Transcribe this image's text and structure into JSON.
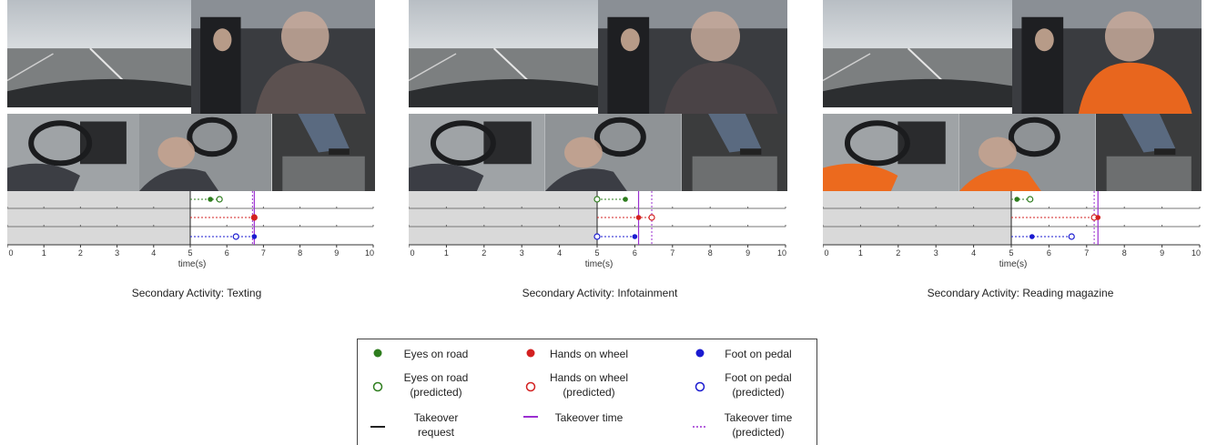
{
  "figure": {
    "panels": [
      {
        "caption": "Secondary Activity: Texting"
      },
      {
        "caption": "Secondary Activity: Infotainment"
      },
      {
        "caption": "Secondary Activity: Reading magazine"
      }
    ],
    "colors": {
      "eyes": "#2e7d1e",
      "hands": "#d32020",
      "foot": "#1a1ad0",
      "takeover": "#9b2fd1",
      "request": "#222222",
      "shade": "#d9d9d9"
    },
    "legend": {
      "items": [
        {
          "label": "Eyes on road",
          "symbol": "filled-circle",
          "color": "#2e7d1e"
        },
        {
          "label": "Hands on wheel",
          "symbol": "filled-circle",
          "color": "#d32020"
        },
        {
          "label": "Foot on pedal",
          "symbol": "filled-circle",
          "color": "#1a1ad0"
        },
        {
          "label": "Eyes on road\n(predicted)",
          "symbol": "open-circle",
          "color": "#2e7d1e"
        },
        {
          "label": "Hands on wheel\n(predicted)",
          "symbol": "open-circle",
          "color": "#d32020"
        },
        {
          "label": "Foot on pedal\n(predicted)",
          "symbol": "open-circle",
          "color": "#1a1ad0"
        },
        {
          "label": "Takeover\nrequest",
          "symbol": "solid-line",
          "color": "#222222"
        },
        {
          "label": "Takeover time",
          "symbol": "solid-line",
          "color": "#9b2fd1"
        },
        {
          "label": "Takeover time\n(predicted)",
          "symbol": "dashed-line",
          "color": "#9b2fd1"
        }
      ]
    }
  },
  "chart_data": [
    {
      "type": "scatter",
      "title": "Secondary Activity: Texting",
      "xlabel": "time(s)",
      "xlim": [
        0,
        10
      ],
      "xticks": [
        0,
        1,
        2,
        3,
        4,
        5,
        6,
        7,
        8,
        9,
        10
      ],
      "takeover_request": 5,
      "takeover_time": 6.75,
      "takeover_time_predicted": 6.7,
      "series": [
        {
          "name": "Eyes on road",
          "actual": 5.55,
          "predicted": 5.8
        },
        {
          "name": "Hands on wheel",
          "actual": 6.75,
          "predicted": 6.75
        },
        {
          "name": "Foot on pedal",
          "actual": 6.75,
          "predicted": 6.25
        }
      ]
    },
    {
      "type": "scatter",
      "title": "Secondary Activity: Infotainment",
      "xlabel": "time(s)",
      "xlim": [
        0,
        10
      ],
      "xticks": [
        0,
        1,
        2,
        3,
        4,
        5,
        6,
        7,
        8,
        9,
        10
      ],
      "takeover_request": 5,
      "takeover_time": 6.1,
      "takeover_time_predicted": 6.45,
      "series": [
        {
          "name": "Eyes on road",
          "actual": 5.75,
          "predicted": 5.0
        },
        {
          "name": "Hands on wheel",
          "actual": 6.1,
          "predicted": 6.45
        },
        {
          "name": "Foot on pedal",
          "actual": 6.0,
          "predicted": 5.0
        }
      ]
    },
    {
      "type": "scatter",
      "title": "Secondary Activity: Reading magazine",
      "xlabel": "time(s)",
      "xlim": [
        0,
        10
      ],
      "xticks": [
        0,
        1,
        2,
        3,
        4,
        5,
        6,
        7,
        8,
        9,
        10
      ],
      "takeover_request": 5,
      "takeover_time": 7.3,
      "takeover_time_predicted": 7.2,
      "series": [
        {
          "name": "Eyes on road",
          "actual": 5.15,
          "predicted": 5.5
        },
        {
          "name": "Hands on wheel",
          "actual": 7.3,
          "predicted": 7.2
        },
        {
          "name": "Foot on pedal",
          "actual": 5.55,
          "predicted": 6.6
        }
      ]
    }
  ]
}
